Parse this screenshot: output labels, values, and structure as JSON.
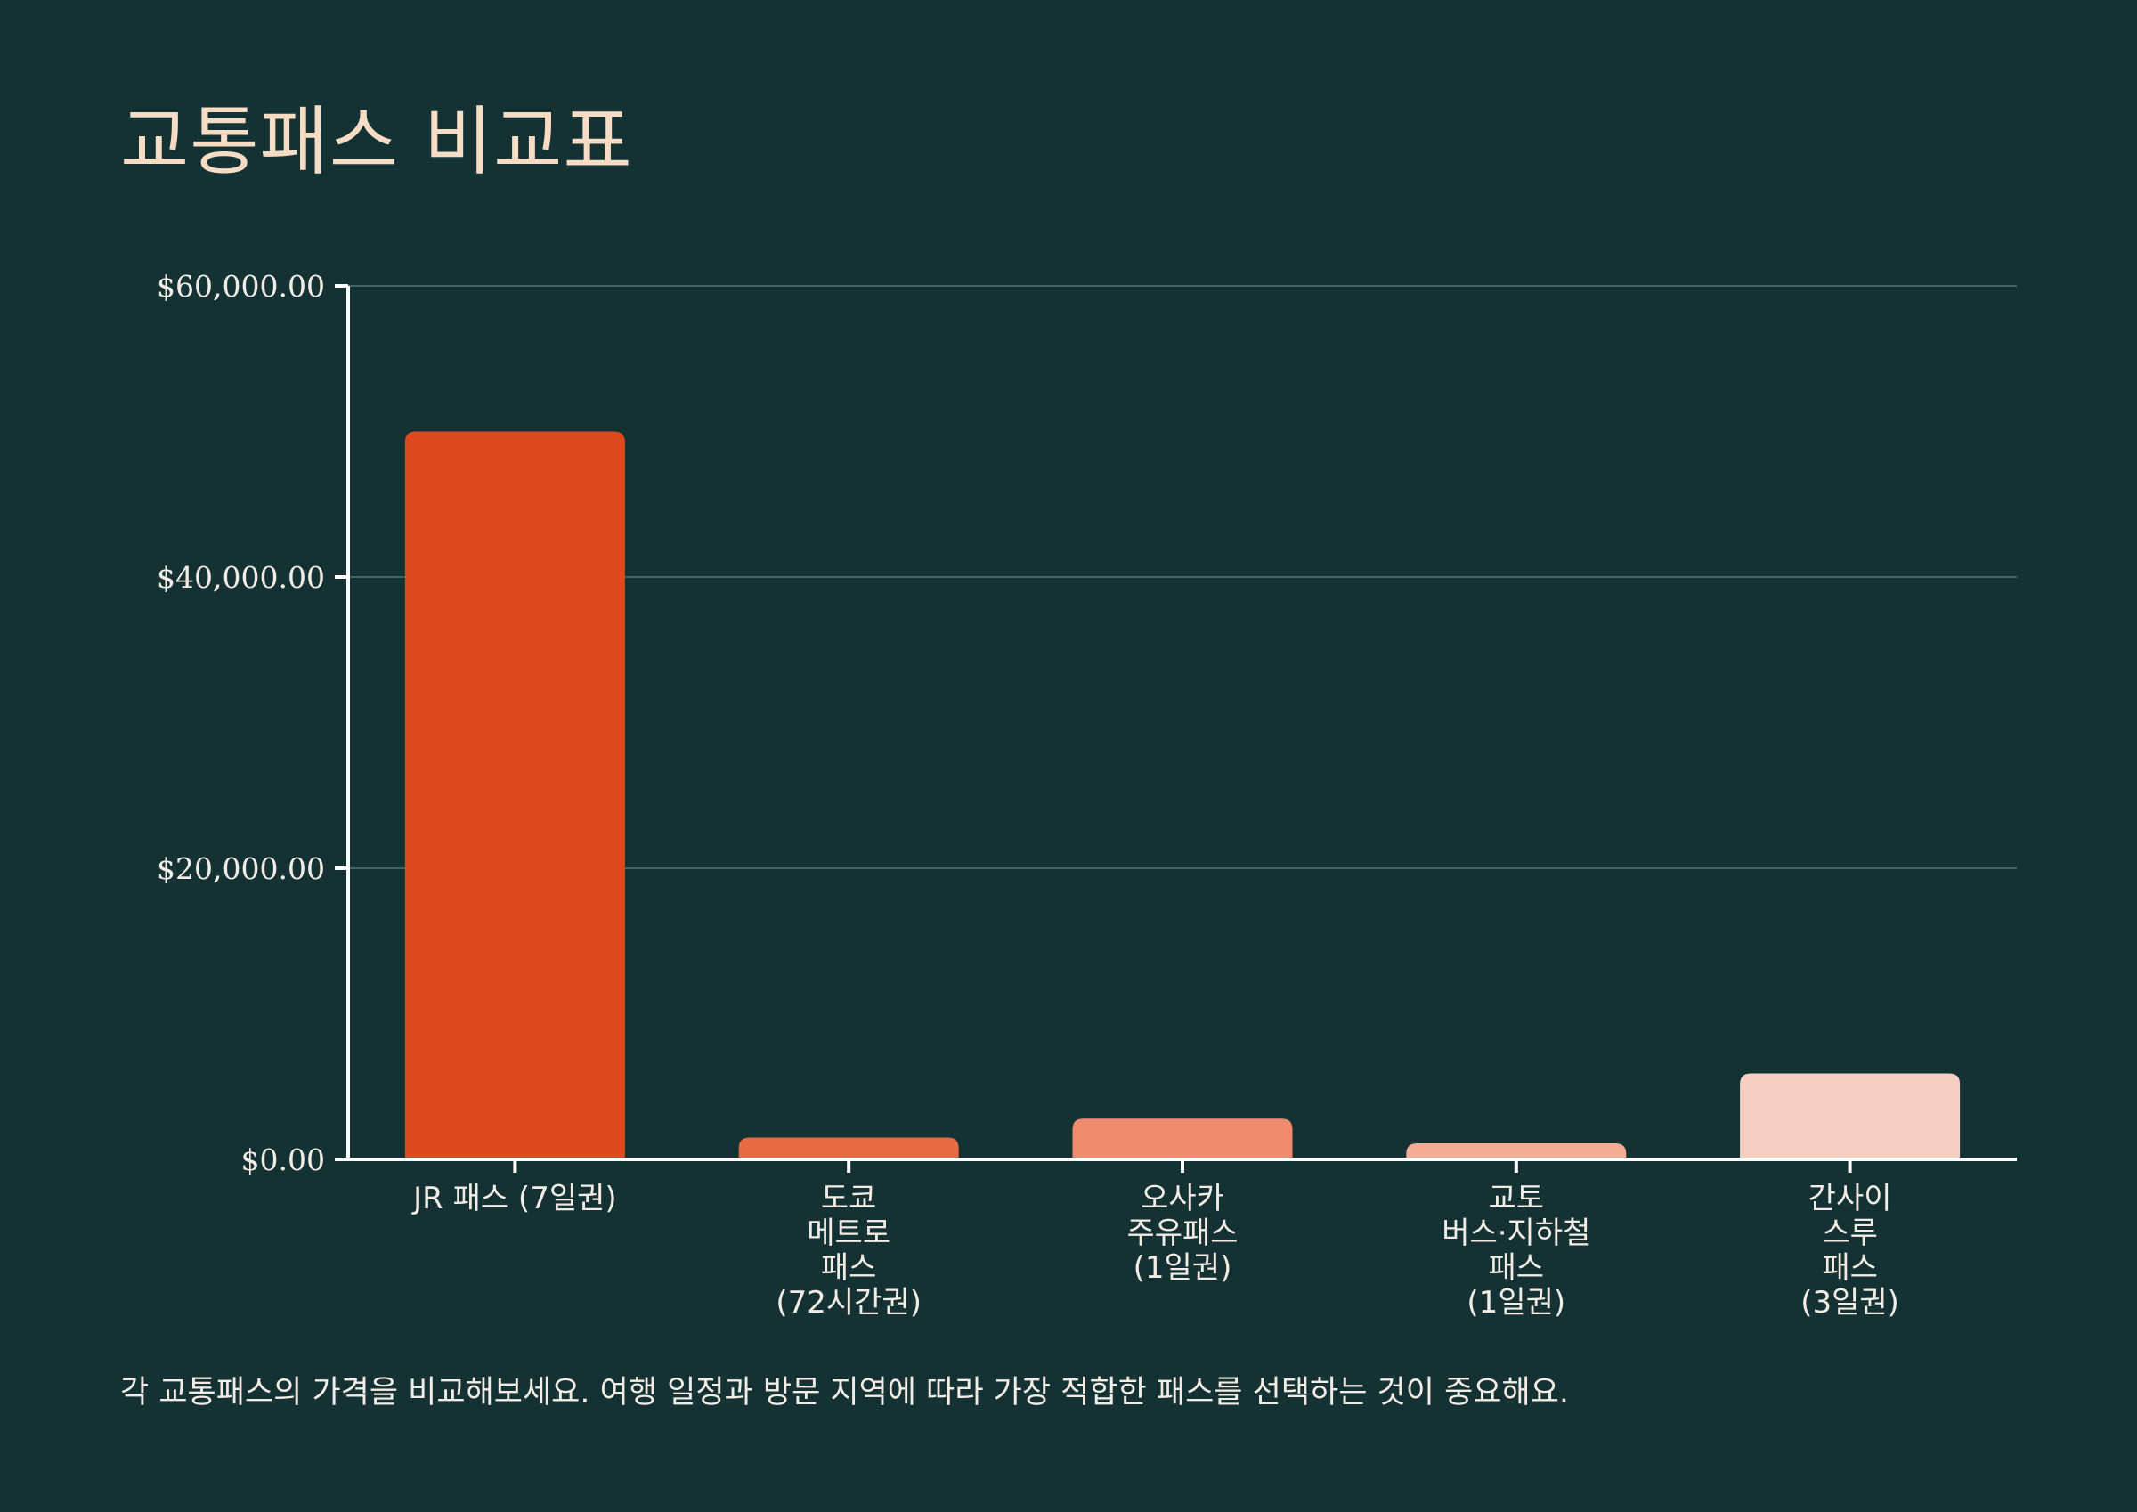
{
  "chart_data": {
    "type": "bar",
    "title": "교통패스 비교표",
    "categories": [
      "JR 패스 (7일권)",
      "도쿄 메트로 패스 (72시간권)",
      "오사카 주유패스 (1일권)",
      "교토 버스·지하철 패스 (1일권)",
      "간사이 스루 패스 (3일권)"
    ],
    "category_lines": [
      [
        "JR 패스 (7일권)"
      ],
      [
        "도쿄",
        "메트로",
        "패스",
        "(72시간권)"
      ],
      [
        "오사카",
        "주유패스",
        "(1일권)"
      ],
      [
        "교토",
        "버스·지하철",
        "패스",
        "(1일권)"
      ],
      [
        "간사이",
        "스루",
        "패스",
        "(3일권)"
      ]
    ],
    "values": [
      50000,
      1500,
      2800,
      1100,
      5900
    ],
    "colors": [
      "#dc4a1e",
      "#e86a43",
      "#ef8a6c",
      "#f3ad95",
      "#f7cfc2"
    ],
    "ylim": [
      0,
      60000
    ],
    "yticks": [
      0,
      20000,
      40000,
      60000
    ],
    "ytick_labels": [
      "$0.00",
      "$20,000.00",
      "$40,000.00",
      "$60,000.00"
    ],
    "grid": true,
    "xlabel": "",
    "ylabel": "",
    "note": "각 교통패스의 가격을 비교해보세요. 여행 일정과 방문 지역에 따라 가장 적합한 패스를 선택하는 것이 중요해요."
  }
}
